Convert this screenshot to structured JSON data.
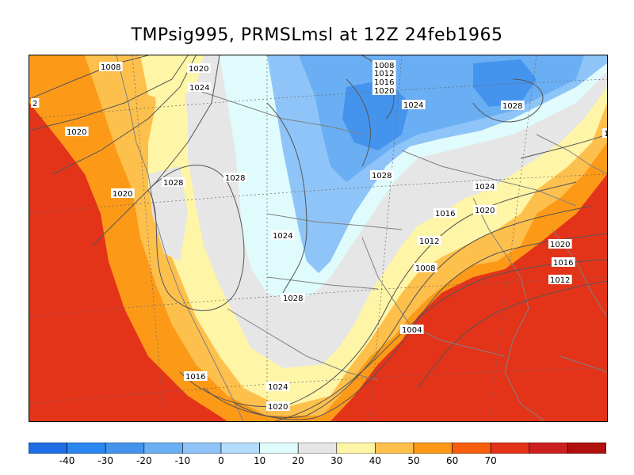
{
  "title": "TMPsig995, PRMSLmsl at 12Z  24feb1965",
  "colors": {
    "levels": [
      "#1f6ee6",
      "#2b86f0",
      "#4494ee",
      "#6aaef4",
      "#8ec4f8",
      "#b4dcfb",
      "#e0fbfb",
      "#e6e6e6",
      "#fff5a6",
      "#fec04c",
      "#fc9a18",
      "#f85e0e",
      "#e3341a",
      "#cc1f1f",
      "#b20f0f"
    ],
    "land_line": "#808080",
    "isobar": "#555555"
  },
  "colorbar": {
    "ticks": [
      "-40",
      "-30",
      "-20",
      "-10",
      "0",
      "10",
      "20",
      "30",
      "40",
      "50",
      "60",
      "70"
    ]
  },
  "isobar_labels": [
    "1008",
    "1020",
    "1024",
    "1008",
    "1012",
    "1016",
    "1020",
    "1024",
    "1028",
    "1028",
    "1020",
    "1020",
    "1028",
    "1028",
    "1024",
    "1028",
    "1024",
    "1020",
    "1016",
    "1012",
    "1008",
    "1020",
    "1016",
    "1012",
    "1004",
    "1016",
    "1024",
    "1020",
    "2",
    "1"
  ]
}
